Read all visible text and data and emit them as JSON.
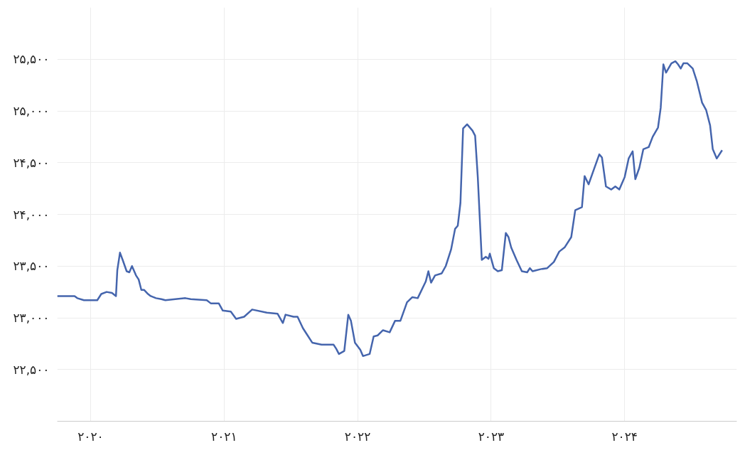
{
  "chart_data": {
    "type": "line",
    "color": "#4565ad",
    "grid": true,
    "marker": "none",
    "line_style": "solid",
    "xlim": [
      2019.75,
      2024.84
    ],
    "xticks": [
      {
        "value": 2020,
        "label": "۲۰۲۰"
      },
      {
        "value": 2021,
        "label": "۲۰۲۱"
      },
      {
        "value": 2022,
        "label": "۲۰۲۲"
      },
      {
        "value": 2023,
        "label": "۲۰۲۳"
      },
      {
        "value": 2024,
        "label": "۲۰۲۴"
      }
    ],
    "ylim": [
      22000,
      26000
    ],
    "yticks": [
      {
        "value": 22500,
        "label": "۲۲,۵۰۰"
      },
      {
        "value": 23000,
        "label": "۲۳,۰۰۰"
      },
      {
        "value": 23500,
        "label": "۲۳,۵۰۰"
      },
      {
        "value": 24000,
        "label": "۲۴,۰۰۰"
      },
      {
        "value": 24500,
        "label": "۲۴,۵۰۰"
      },
      {
        "value": 25000,
        "label": "۲۵,۰۰۰"
      },
      {
        "value": 25500,
        "label": "۲۵,۵۰۰"
      }
    ],
    "x": [
      2019.75,
      2019.88,
      2019.9,
      2019.95,
      2020.05,
      2020.08,
      2020.12,
      2020.16,
      2020.19,
      2020.2,
      2020.22,
      2020.24,
      2020.27,
      2020.29,
      2020.31,
      2020.34,
      2020.36,
      2020.38,
      2020.4,
      2020.43,
      2020.45,
      2020.49,
      2020.53,
      2020.56,
      2020.71,
      2020.75,
      2020.87,
      2020.9,
      2020.96,
      2020.99,
      2021.05,
      2021.09,
      2021.15,
      2021.21,
      2021.32,
      2021.4,
      2021.44,
      2021.46,
      2021.52,
      2021.55,
      2021.59,
      2021.62,
      2021.66,
      2021.73,
      2021.82,
      2021.84,
      2021.86,
      2021.9,
      2021.93,
      2021.95,
      2021.98,
      2022.02,
      2022.04,
      2022.09,
      2022.12,
      2022.15,
      2022.19,
      2022.24,
      2022.28,
      2022.32,
      2022.37,
      2022.41,
      2022.45,
      2022.51,
      2022.53,
      2022.55,
      2022.58,
      2022.63,
      2022.66,
      2022.7,
      2022.73,
      2022.75,
      2022.77,
      2022.79,
      2022.82,
      2022.86,
      2022.88,
      2022.9,
      2022.93,
      2022.96,
      2022.98,
      2022.99,
      2023.02,
      2023.05,
      2023.08,
      2023.11,
      2023.13,
      2023.15,
      2023.19,
      2023.23,
      2023.27,
      2023.29,
      2023.31,
      2023.37,
      2023.42,
      2023.47,
      2023.51,
      2023.55,
      2023.6,
      2023.63,
      2023.68,
      2023.7,
      2023.73,
      2023.76,
      2023.81,
      2023.83,
      2023.86,
      2023.9,
      2023.93,
      2023.96,
      2024.0,
      2024.03,
      2024.06,
      2024.08,
      2024.11,
      2024.14,
      2024.18,
      2024.21,
      2024.25,
      2024.27,
      2024.29,
      2024.31,
      2024.35,
      2024.38,
      2024.4,
      2024.42,
      2024.44,
      2024.47,
      2024.51,
      2024.54,
      2024.58,
      2024.61,
      2024.64,
      2024.66,
      2024.69,
      2024.73
    ],
    "values": [
      23210,
      23210,
      23190,
      23170,
      23170,
      23230,
      23250,
      23240,
      23210,
      23460,
      23630,
      23560,
      23450,
      23440,
      23500,
      23410,
      23370,
      23270,
      23270,
      23230,
      23210,
      23190,
      23180,
      23170,
      23190,
      23180,
      23170,
      23140,
      23140,
      23070,
      23060,
      22990,
      23010,
      23080,
      23050,
      23040,
      22950,
      23030,
      23010,
      23010,
      22900,
      22840,
      22760,
      22740,
      22740,
      22700,
      22650,
      22680,
      23030,
      22970,
      22760,
      22690,
      22630,
      22650,
      22820,
      22830,
      22880,
      22860,
      22970,
      22970,
      23150,
      23200,
      23190,
      23350,
      23450,
      23340,
      23410,
      23430,
      23500,
      23660,
      23860,
      23890,
      24110,
      24830,
      24870,
      24810,
      24760,
      24360,
      23560,
      23590,
      23570,
      23620,
      23480,
      23450,
      23460,
      23820,
      23780,
      23680,
      23560,
      23450,
      23440,
      23480,
      23450,
      23470,
      23480,
      23540,
      23640,
      23680,
      23780,
      24040,
      24070,
      24370,
      24290,
      24400,
      24580,
      24550,
      24270,
      24240,
      24270,
      24240,
      24360,
      24540,
      24610,
      24340,
      24450,
      24630,
      24650,
      24750,
      24840,
      25030,
      25450,
      25370,
      25460,
      25480,
      25450,
      25410,
      25460,
      25460,
      25410,
      25290,
      25080,
      25010,
      24860,
      24630,
      24540,
      24620
    ]
  }
}
